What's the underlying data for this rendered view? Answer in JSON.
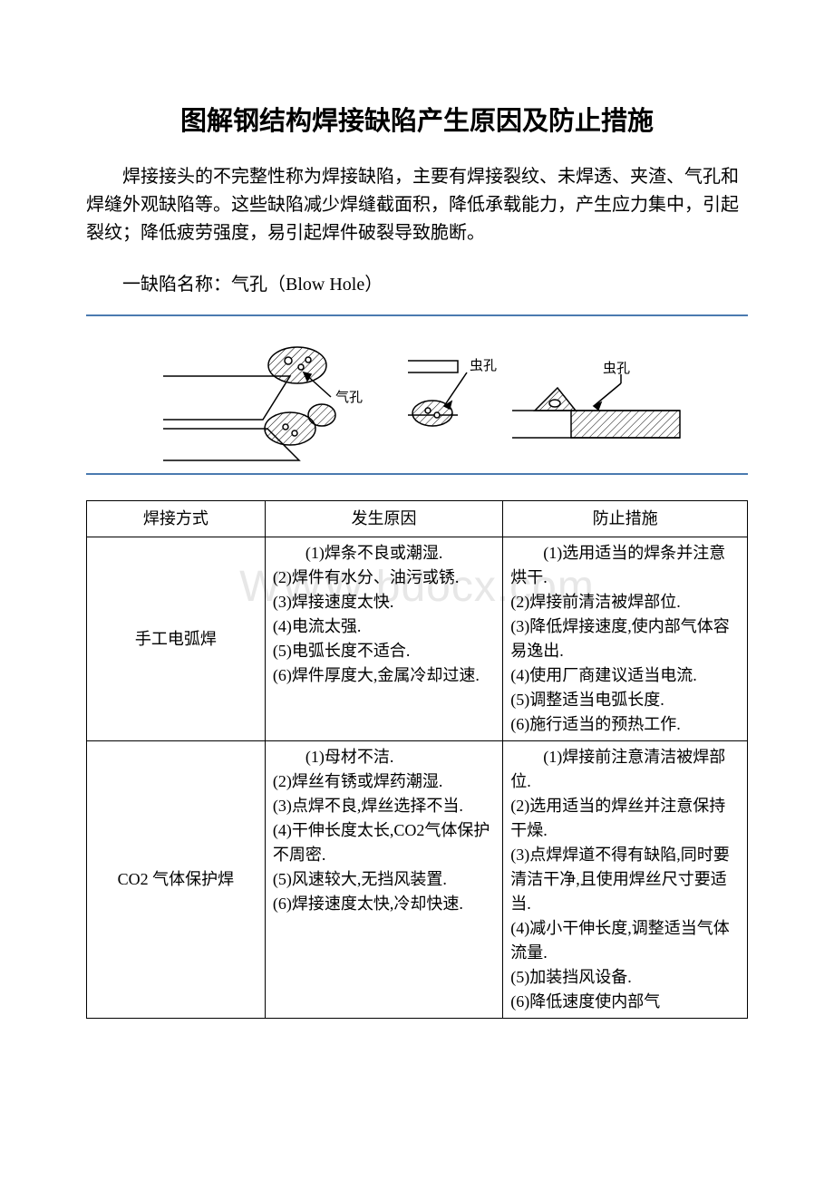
{
  "title": "图解钢结构焊接缺陷产生原因及防止措施",
  "intro": "焊接接头的不完整性称为焊接缺陷，主要有焊接裂纹、未焊透、夹渣、气孔和焊缝外观缺陷等。这些缺陷减少焊缝截面积，降低承载能力，产生应力集中，引起裂纹；降低疲劳强度，易引起焊件破裂导致脆断。",
  "section1_heading": "一缺陷名称：气孔（Blow Hole）",
  "diagram": {
    "label_chonkong1": "虫孔",
    "label_chonkong2": "虫孔",
    "label_qikong": "气孔",
    "stroke_color": "#000000",
    "hatch_color": "#000000",
    "background": "#ffffff",
    "border_color": "#4a7ab0"
  },
  "watermark": "WWW.bdocx.com",
  "table": {
    "headers": [
      "焊接方式",
      "发生原因",
      "防止措施"
    ],
    "rows": [
      {
        "method": "手工电弧焊",
        "causes": [
          "(1)焊条不良或潮湿.",
          "(2)焊件有水分、油污或锈.",
          "(3)焊接速度太快.",
          "(4)电流太强.",
          "(5)电弧长度不适合.",
          "(6)焊件厚度大,金属冷却过速."
        ],
        "measures": [
          "(1)选用适当的焊条并注意烘干.",
          "(2)焊接前清洁被焊部位.",
          "(3)降低焊接速度,使内部气体容易逸出.",
          "(4)使用厂商建议适当电流.",
          "(5)调整适当电弧长度.",
          "(6)施行适当的预热工作."
        ]
      },
      {
        "method": "CO2 气体保护焊",
        "causes": [
          "(1)母材不洁.",
          "(2)焊丝有锈或焊药潮湿.",
          "(3)点焊不良,焊丝选择不当.",
          "(4)干伸长度太长,CO2气体保护不周密.",
          "(5)风速较大,无挡风装置.",
          "(6)焊接速度太快,冷却快速."
        ],
        "measures": [
          "(1)焊接前注意清洁被焊部位.",
          "(2)选用适当的焊丝并注意保持干燥.",
          "(3)点焊焊道不得有缺陷,同时要清洁干净,且使用焊丝尺寸要适当.",
          "(4)减小干伸长度,调整适当气体流量.",
          "(5)加装挡风设备.",
          "(6)降低速度使内部气"
        ]
      }
    ]
  }
}
